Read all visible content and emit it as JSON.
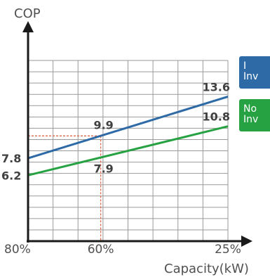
{
  "chart_data": {
    "type": "line",
    "ylabel": "COP",
    "xlabel": "Capacity(kW)",
    "x_ticks": [
      "80%",
      "60%",
      "25%"
    ],
    "x_tick_values": [
      80,
      60,
      25
    ],
    "xlim": [
      80,
      25
    ],
    "ylim": [
      0,
      17
    ],
    "grid": true,
    "series": [
      {
        "name": "I\nInv",
        "color": "#2e6aa6",
        "x": [
          80,
          25
        ],
        "y": [
          7.8,
          13.6
        ],
        "point_labels": [
          {
            "x": 80,
            "y": 7.8,
            "text": "7.8"
          },
          {
            "x": 60,
            "y": 9.9,
            "text": "9.9"
          },
          {
            "x": 25,
            "y": 13.6,
            "text": "13.6"
          }
        ]
      },
      {
        "name": "No\nInv",
        "color": "#27a243",
        "x": [
          80,
          25
        ],
        "y": [
          6.2,
          10.8
        ],
        "point_labels": [
          {
            "x": 80,
            "y": 6.2,
            "text": "6.2"
          },
          {
            "x": 60,
            "y": 7.9,
            "text": "7.9"
          },
          {
            "x": 25,
            "y": 10.8,
            "text": "10.8"
          }
        ]
      }
    ],
    "annotations": [
      {
        "type": "dashed-guide",
        "x": 60,
        "y": 9.9,
        "color": "#e06b4a"
      }
    ]
  }
}
